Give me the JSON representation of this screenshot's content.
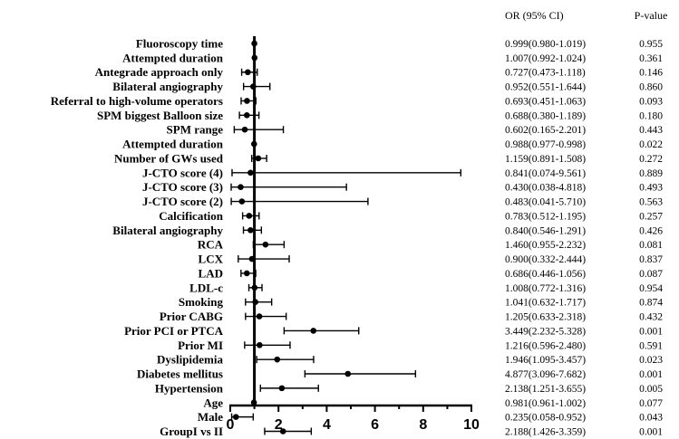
{
  "chart_data": {
    "type": "forest",
    "headers": {
      "or_ci": "OR (95% CI)",
      "p_value": "P-value"
    },
    "xlim": [
      0,
      10
    ],
    "xticks": [
      0,
      2,
      4,
      6,
      8,
      10
    ],
    "reference_line": 1,
    "rows": [
      {
        "label": "Fluoroscopy time",
        "or": 0.999,
        "lo": 0.98,
        "hi": 1.019,
        "or_text": "0.999(0.980-1.019)",
        "p": "0.955"
      },
      {
        "label": "Attempted duration",
        "or": 1.007,
        "lo": 0.992,
        "hi": 1.024,
        "or_text": "1.007(0.992-1.024)",
        "p": "0.361"
      },
      {
        "label": "Antegrade approach only",
        "or": 0.727,
        "lo": 0.473,
        "hi": 1.118,
        "or_text": "0.727(0.473-1.118)",
        "p": "0.146"
      },
      {
        "label": "Bilateral angiography",
        "or": 0.952,
        "lo": 0.551,
        "hi": 1.644,
        "or_text": "0.952(0.551-1.644)",
        "p": "0.860"
      },
      {
        "label": "Referral to high-volume operators",
        "or": 0.693,
        "lo": 0.451,
        "hi": 1.063,
        "or_text": "0.693(0.451-1.063)",
        "p": "0.093"
      },
      {
        "label": "SPM biggest Balloon size",
        "or": 0.688,
        "lo": 0.38,
        "hi": 1.189,
        "or_text": "0.688(0.380-1.189)",
        "p": "0.180"
      },
      {
        "label": "SPM range",
        "or": 0.602,
        "lo": 0.165,
        "hi": 2.201,
        "or_text": "0.602(0.165-2.201)",
        "p": "0.443"
      },
      {
        "label": "Attempted duration",
        "or": 0.988,
        "lo": 0.977,
        "hi": 0.998,
        "or_text": "0.988(0.977-0.998)",
        "p": "0.022"
      },
      {
        "label": "Number of GWs used",
        "or": 1.159,
        "lo": 0.891,
        "hi": 1.508,
        "or_text": "1.159(0.891-1.508)",
        "p": "0.272"
      },
      {
        "label": "J-CTO score (4)",
        "or": 0.841,
        "lo": 0.074,
        "hi": 9.561,
        "or_text": "0.841(0.074-9.561)",
        "p": "0.889"
      },
      {
        "label": "J-CTO score (3)",
        "or": 0.43,
        "lo": 0.038,
        "hi": 4.818,
        "or_text": "0.430(0.038-4.818)",
        "p": "0.493"
      },
      {
        "label": "J-CTO score (2)",
        "or": 0.483,
        "lo": 0.041,
        "hi": 5.71,
        "or_text": "0.483(0.041-5.710)",
        "p": "0.563"
      },
      {
        "label": "Calcification",
        "or": 0.783,
        "lo": 0.512,
        "hi": 1.195,
        "or_text": "0.783(0.512-1.195)",
        "p": "0.257"
      },
      {
        "label": "Bilateral angiography",
        "or": 0.84,
        "lo": 0.546,
        "hi": 1.291,
        "or_text": "0.840(0.546-1.291)",
        "p": "0.426"
      },
      {
        "label": "RCA",
        "or": 1.46,
        "lo": 0.955,
        "hi": 2.232,
        "or_text": "1.460(0.955-2.232)",
        "p": "0.081"
      },
      {
        "label": "LCX",
        "or": 0.9,
        "lo": 0.332,
        "hi": 2.444,
        "or_text": "0.900(0.332-2.444)",
        "p": "0.837"
      },
      {
        "label": "LAD",
        "or": 0.686,
        "lo": 0.446,
        "hi": 1.056,
        "or_text": "0.686(0.446-1.056)",
        "p": "0.087"
      },
      {
        "label": "LDL-c",
        "or": 1.008,
        "lo": 0.772,
        "hi": 1.316,
        "or_text": "1.008(0.772-1.316)",
        "p": "0.954"
      },
      {
        "label": "Smoking",
        "or": 1.041,
        "lo": 0.632,
        "hi": 1.717,
        "or_text": "1.041(0.632-1.717)",
        "p": "0.874"
      },
      {
        "label": "Prior CABG",
        "or": 1.205,
        "lo": 0.633,
        "hi": 2.318,
        "or_text": "1.205(0.633-2.318)",
        "p": "0.432"
      },
      {
        "label": "Prior PCI or PTCA",
        "or": 3.449,
        "lo": 2.232,
        "hi": 5.328,
        "or_text": "3.449(2.232-5.328)",
        "p": "0.001"
      },
      {
        "label": "Prior MI",
        "or": 1.216,
        "lo": 0.596,
        "hi": 2.48,
        "or_text": "1.216(0.596-2.480)",
        "p": "0.591"
      },
      {
        "label": "Dyslipidemia",
        "or": 1.946,
        "lo": 1.095,
        "hi": 3.457,
        "or_text": "1.946(1.095-3.457)",
        "p": "0.023"
      },
      {
        "label": "Diabetes mellitus",
        "or": 4.877,
        "lo": 3.096,
        "hi": 7.682,
        "or_text": "4.877(3.096-7.682)",
        "p": "0.001"
      },
      {
        "label": "Hypertension",
        "or": 2.138,
        "lo": 1.251,
        "hi": 3.655,
        "or_text": "2.138(1.251-3.655)",
        "p": "0.005"
      },
      {
        "label": "Age",
        "or": 0.981,
        "lo": 0.961,
        "hi": 1.002,
        "or_text": "0.981(0.961-1.002)",
        "p": "0.077"
      },
      {
        "label": "Male",
        "or": 0.235,
        "lo": 0.058,
        "hi": 0.952,
        "or_text": "0.235(0.058-0.952)",
        "p": "0.043"
      },
      {
        "label": "GroupI vs II",
        "or": 2.188,
        "lo": 1.426,
        "hi": 3.359,
        "or_text": "2.188(1.426-3.359)",
        "p": "0.001"
      }
    ]
  }
}
